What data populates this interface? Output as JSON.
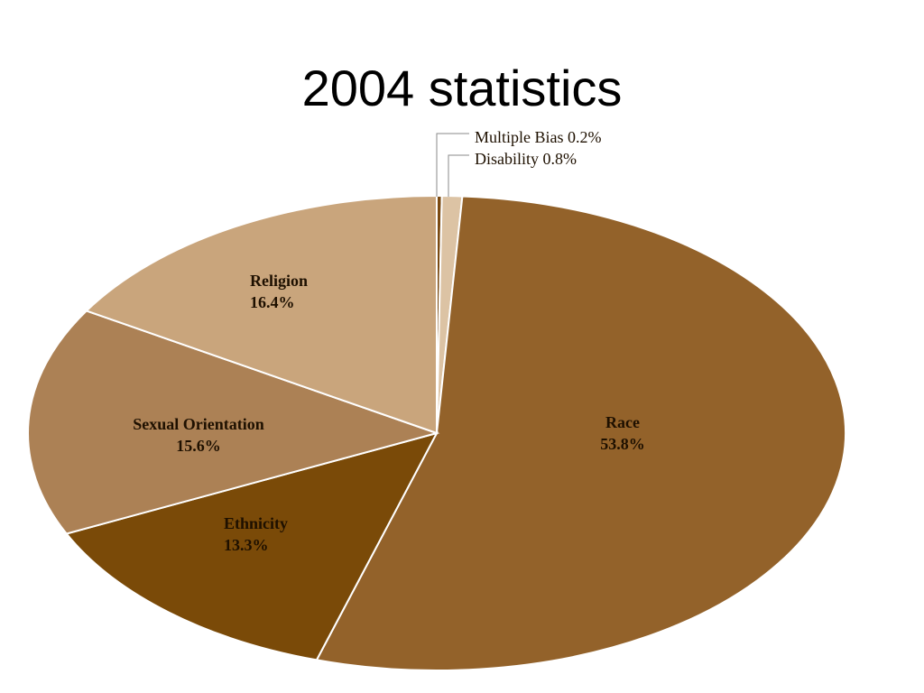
{
  "slide": {
    "title": "2004 statistics"
  },
  "chart_data": {
    "type": "pie",
    "title": "2004 statistics",
    "slices": [
      {
        "label": "Multiple Bias",
        "value": 0.2,
        "display": "Multiple Bias 0.2%",
        "color": "#7a4a12",
        "callout": true
      },
      {
        "label": "Disability",
        "value": 0.8,
        "display": "Disability 0.8%",
        "color": "#dcc3a4",
        "callout": true
      },
      {
        "label": "Race",
        "value": 53.8,
        "display": "53.8%",
        "color": "#93622a",
        "callout": false
      },
      {
        "label": "Ethnicity",
        "value": 13.3,
        "display": "13.3%",
        "color": "#7a4a08",
        "callout": false
      },
      {
        "label": "Sexual Orientation",
        "value": 15.6,
        "display": "15.6%",
        "color": "#ac8155",
        "callout": false
      },
      {
        "label": "Religion",
        "value": 16.4,
        "display": "16.4%",
        "color": "#c9a57c",
        "callout": false
      }
    ],
    "legend": "none"
  }
}
